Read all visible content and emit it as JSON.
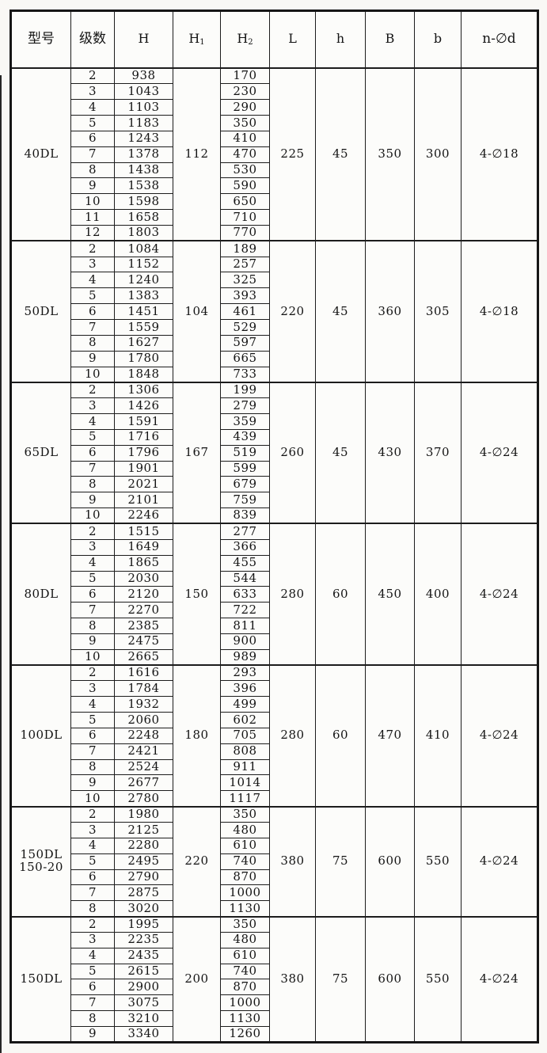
{
  "table": {
    "columns": [
      {
        "key": "model",
        "label": "型号"
      },
      {
        "key": "stage",
        "label": "级数"
      },
      {
        "key": "H",
        "label": "H"
      },
      {
        "key": "H1",
        "label": "H",
        "sub": "1"
      },
      {
        "key": "H2",
        "label": "H",
        "sub": "2"
      },
      {
        "key": "L",
        "label": "L"
      },
      {
        "key": "h",
        "label": "h"
      },
      {
        "key": "B",
        "label": "B"
      },
      {
        "key": "b",
        "label": "b"
      },
      {
        "key": "nd",
        "label": "n-∅d"
      }
    ],
    "groups": [
      {
        "model": [
          "40DL"
        ],
        "H1": "112",
        "L": "225",
        "h": "45",
        "B": "350",
        "b": "300",
        "nd": "4-∅18",
        "rows": [
          [
            "2",
            "938",
            "170"
          ],
          [
            "3",
            "1043",
            "230"
          ],
          [
            "4",
            "1103",
            "290"
          ],
          [
            "5",
            "1183",
            "350"
          ],
          [
            "6",
            "1243",
            "410"
          ],
          [
            "7",
            "1378",
            "470"
          ],
          [
            "8",
            "1438",
            "530"
          ],
          [
            "9",
            "1538",
            "590"
          ],
          [
            "10",
            "1598",
            "650"
          ],
          [
            "11",
            "1658",
            "710"
          ],
          [
            "12",
            "1803",
            "770"
          ]
        ]
      },
      {
        "model": [
          "50DL"
        ],
        "H1": "104",
        "L": "220",
        "h": "45",
        "B": "360",
        "b": "305",
        "nd": "4-∅18",
        "rows": [
          [
            "2",
            "1084",
            "189"
          ],
          [
            "3",
            "1152",
            "257"
          ],
          [
            "4",
            "1240",
            "325"
          ],
          [
            "5",
            "1383",
            "393"
          ],
          [
            "6",
            "1451",
            "461"
          ],
          [
            "7",
            "1559",
            "529"
          ],
          [
            "8",
            "1627",
            "597"
          ],
          [
            "9",
            "1780",
            "665"
          ],
          [
            "10",
            "1848",
            "733"
          ]
        ]
      },
      {
        "model": [
          "65DL"
        ],
        "H1": "167",
        "L": "260",
        "h": "45",
        "B": "430",
        "b": "370",
        "nd": "4-∅24",
        "rows": [
          [
            "2",
            "1306",
            "199"
          ],
          [
            "3",
            "1426",
            "279"
          ],
          [
            "4",
            "1591",
            "359"
          ],
          [
            "5",
            "1716",
            "439"
          ],
          [
            "6",
            "1796",
            "519"
          ],
          [
            "7",
            "1901",
            "599"
          ],
          [
            "8",
            "2021",
            "679"
          ],
          [
            "9",
            "2101",
            "759"
          ],
          [
            "10",
            "2246",
            "839"
          ]
        ]
      },
      {
        "model": [
          "80DL"
        ],
        "H1": "150",
        "L": "280",
        "h": "60",
        "B": "450",
        "b": "400",
        "nd": "4-∅24",
        "rows": [
          [
            "2",
            "1515",
            "277"
          ],
          [
            "3",
            "1649",
            "366"
          ],
          [
            "4",
            "1865",
            "455"
          ],
          [
            "5",
            "2030",
            "544"
          ],
          [
            "6",
            "2120",
            "633"
          ],
          [
            "7",
            "2270",
            "722"
          ],
          [
            "8",
            "2385",
            "811"
          ],
          [
            "9",
            "2475",
            "900"
          ],
          [
            "10",
            "2665",
            "989"
          ]
        ]
      },
      {
        "model": [
          "100DL"
        ],
        "H1": "180",
        "L": "280",
        "h": "60",
        "B": "470",
        "b": "410",
        "nd": "4-∅24",
        "rows": [
          [
            "2",
            "1616",
            "293"
          ],
          [
            "3",
            "1784",
            "396"
          ],
          [
            "4",
            "1932",
            "499"
          ],
          [
            "5",
            "2060",
            "602"
          ],
          [
            "6",
            "2248",
            "705"
          ],
          [
            "7",
            "2421",
            "808"
          ],
          [
            "8",
            "2524",
            "911"
          ],
          [
            "9",
            "2677",
            "1014"
          ],
          [
            "10",
            "2780",
            "1117"
          ]
        ]
      },
      {
        "model": [
          "150DL",
          "150-20"
        ],
        "H1": "220",
        "L": "380",
        "h": "75",
        "B": "600",
        "b": "550",
        "nd": "4-∅24",
        "rows": [
          [
            "2",
            "1980",
            "350"
          ],
          [
            "3",
            "2125",
            "480"
          ],
          [
            "4",
            "2280",
            "610"
          ],
          [
            "5",
            "2495",
            "740"
          ],
          [
            "6",
            "2790",
            "870"
          ],
          [
            "7",
            "2875",
            "1000"
          ],
          [
            "8",
            "3020",
            "1130"
          ]
        ]
      },
      {
        "model": [
          "150DL"
        ],
        "H1": "200",
        "L": "380",
        "h": "75",
        "B": "600",
        "b": "550",
        "nd": "4-∅24",
        "rows": [
          [
            "2",
            "1995",
            "350"
          ],
          [
            "3",
            "2235",
            "480"
          ],
          [
            "4",
            "2435",
            "610"
          ],
          [
            "5",
            "2615",
            "740"
          ],
          [
            "6",
            "2900",
            "870"
          ],
          [
            "7",
            "3075",
            "1000"
          ],
          [
            "8",
            "3210",
            "1130"
          ],
          [
            "9",
            "3340",
            "1260"
          ]
        ]
      }
    ]
  }
}
